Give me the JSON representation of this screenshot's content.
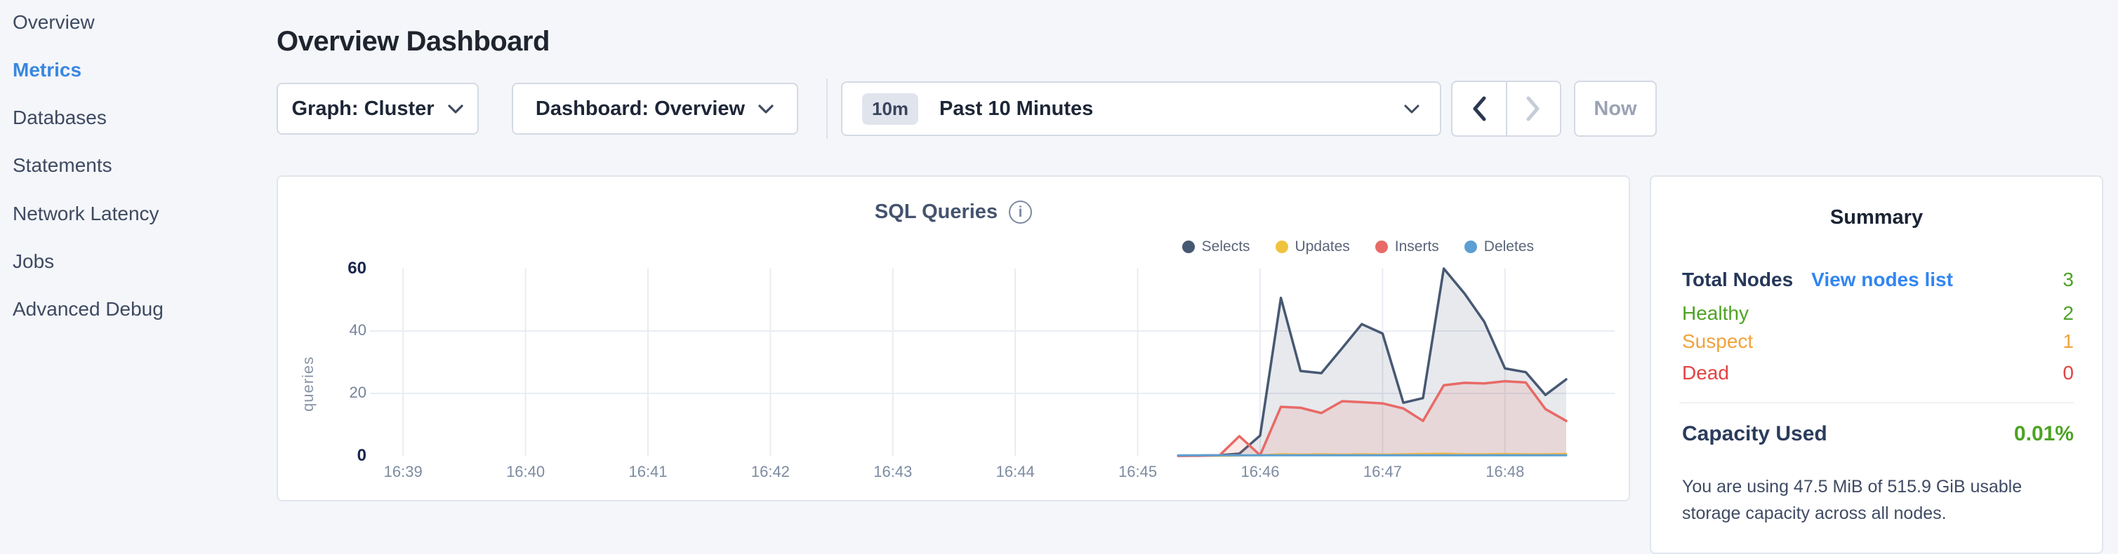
{
  "page": {
    "background": "#f4f6fa"
  },
  "sidebar": {
    "items": [
      {
        "label": "Overview",
        "active": false
      },
      {
        "label": "Metrics",
        "active": true
      },
      {
        "label": "Databases",
        "active": false
      },
      {
        "label": "Statements",
        "active": false
      },
      {
        "label": "Network Latency",
        "active": false
      },
      {
        "label": "Jobs",
        "active": false
      },
      {
        "label": "Advanced Debug",
        "active": false
      }
    ],
    "active_color": "#3a87e0",
    "item_color": "#3e4a60"
  },
  "header": {
    "title": "Overview Dashboard"
  },
  "controls": {
    "graph_dropdown_label": "Graph: Cluster",
    "dashboard_dropdown_label": "Dashboard: Overview",
    "time_badge": "10m",
    "time_label": "Past 10 Minutes",
    "now_label": "Now",
    "prev_enabled": true,
    "next_enabled": false
  },
  "chart": {
    "title": "SQL Queries",
    "ylabel": "queries",
    "info_icon": "info-circle"
  },
  "chart_data": {
    "type": "area",
    "title": "SQL Queries",
    "ylabel": "queries",
    "ylim": [
      0,
      60
    ],
    "yticks": [
      0,
      20,
      40,
      60
    ],
    "xticks": [
      "16:39",
      "16:40",
      "16:41",
      "16:42",
      "16:43",
      "16:44",
      "16:45",
      "16:46",
      "16:47",
      "16:48"
    ],
    "x_unit": "minutes after 16:39",
    "grid": true,
    "legend_position": "top-right",
    "series": [
      {
        "name": "Selects",
        "color": "#475872",
        "fill": "rgba(71,88,114,0.13)",
        "stroke_width": 3.5,
        "points": [
          [
            6.33,
            0
          ],
          [
            6.5,
            0.1
          ],
          [
            6.67,
            0.2
          ],
          [
            6.83,
            0.7
          ],
          [
            7.0,
            6.5
          ],
          [
            7.17,
            50.6
          ],
          [
            7.33,
            27.2
          ],
          [
            7.5,
            26.5
          ],
          [
            7.67,
            34.5
          ],
          [
            7.83,
            42.2
          ],
          [
            8.0,
            39.2
          ],
          [
            8.17,
            17
          ],
          [
            8.33,
            18.5
          ],
          [
            8.5,
            60
          ],
          [
            8.67,
            52
          ],
          [
            8.83,
            43
          ],
          [
            9.0,
            28
          ],
          [
            9.17,
            26.8
          ],
          [
            9.33,
            19.5
          ],
          [
            9.5,
            24.5
          ]
        ]
      },
      {
        "name": "Updates",
        "color": "#f0c33f",
        "fill": "rgba(240,195,63,0.25)",
        "stroke_width": 3,
        "points": [
          [
            6.33,
            0
          ],
          [
            6.5,
            0
          ],
          [
            6.67,
            0
          ],
          [
            6.83,
            0.1
          ],
          [
            7.0,
            0.2
          ],
          [
            7.17,
            0.5
          ],
          [
            7.33,
            0.4
          ],
          [
            7.5,
            0.5
          ],
          [
            7.67,
            0.4
          ],
          [
            7.83,
            0.5
          ],
          [
            8.0,
            0.4
          ],
          [
            8.17,
            0.5
          ],
          [
            8.33,
            0.6
          ],
          [
            8.5,
            0.7
          ],
          [
            8.67,
            0.5
          ],
          [
            8.83,
            0.5
          ],
          [
            9.0,
            0.6
          ],
          [
            9.17,
            0.5
          ],
          [
            9.33,
            0.5
          ],
          [
            9.5,
            0.6
          ]
        ]
      },
      {
        "name": "Inserts",
        "color": "#e86a66",
        "fill": "rgba(232,106,102,0.14)",
        "stroke_width": 3.5,
        "points": [
          [
            6.33,
            0
          ],
          [
            6.5,
            0
          ],
          [
            6.67,
            0.2
          ],
          [
            6.83,
            6.3
          ],
          [
            7.0,
            0.2
          ],
          [
            7.17,
            15.7
          ],
          [
            7.33,
            15.4
          ],
          [
            7.5,
            13.7
          ],
          [
            7.67,
            17.5
          ],
          [
            7.83,
            17.2
          ],
          [
            8.0,
            16.8
          ],
          [
            8.17,
            15.2
          ],
          [
            8.33,
            11.2
          ],
          [
            8.5,
            22.6
          ],
          [
            8.67,
            23.4
          ],
          [
            8.83,
            23.2
          ],
          [
            9.0,
            23.9
          ],
          [
            9.17,
            23.5
          ],
          [
            9.33,
            15
          ],
          [
            9.5,
            11.2
          ]
        ]
      },
      {
        "name": "Deletes",
        "color": "#5b9fd3",
        "fill": "rgba(91,159,211,0.25)",
        "stroke_width": 3,
        "points": [
          [
            6.33,
            0.15
          ],
          [
            6.5,
            0.15
          ],
          [
            6.67,
            0.15
          ],
          [
            6.83,
            0.15
          ],
          [
            7.0,
            0.15
          ],
          [
            7.17,
            0.15
          ],
          [
            7.33,
            0.15
          ],
          [
            7.5,
            0.15
          ],
          [
            7.67,
            0.15
          ],
          [
            7.83,
            0.15
          ],
          [
            8.0,
            0.15
          ],
          [
            8.17,
            0.15
          ],
          [
            8.33,
            0.15
          ],
          [
            8.5,
            0.15
          ],
          [
            8.67,
            0.15
          ],
          [
            8.83,
            0.15
          ],
          [
            9.0,
            0.15
          ],
          [
            9.17,
            0.15
          ],
          [
            9.33,
            0.15
          ],
          [
            9.5,
            0.15
          ]
        ]
      }
    ],
    "grid_color": "#e8ecf2",
    "tick_color": "#7d8ba1",
    "tick_end_color": "#17264d"
  },
  "summary": {
    "title": "Summary",
    "total_nodes": {
      "label": "Total Nodes",
      "link": "View nodes list",
      "value": "3"
    },
    "statuses": [
      {
        "label": "Healthy",
        "value": "2",
        "color": "#4ea325"
      },
      {
        "label": "Suspect",
        "value": "1",
        "color": "#f0a23c"
      },
      {
        "label": "Dead",
        "value": "0",
        "color": "#e14442"
      }
    ],
    "capacity": {
      "label": "Capacity Used",
      "value": "0.01%",
      "description": "You are using 47.5 MiB of 515.9 GiB usable storage capacity across all nodes."
    },
    "colors": {
      "green": "#4ea325",
      "orange": "#f0a23c",
      "red": "#e14442",
      "link": "#3185f2"
    }
  }
}
